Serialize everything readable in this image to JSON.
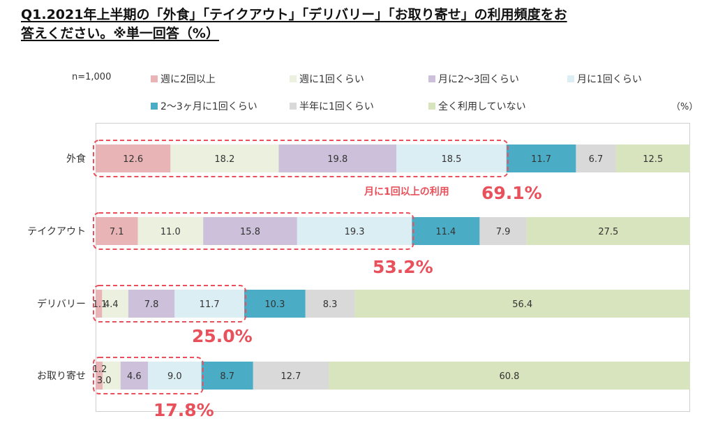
{
  "title_line1": "Q1.2021年上半期の「外食」「テイクアウト」「デリバリー」「お取り寄せ」の利用頻度をお",
  "title_line2": "答えください。※単一回答（%）",
  "n_label": "n=1,000",
  "unit_label": "（%）",
  "colors": {
    "weekly2plus": "#e8b4b5",
    "weekly1": "#ebf1de",
    "monthly2_3": "#ccc0da",
    "monthly1": "#dbeef4",
    "every2_3months": "#4bacc6",
    "halfyear1": "#d9d9d9",
    "never": "#d7e4bd",
    "annotation": "#e8505b"
  },
  "chart_data": {
    "type": "bar",
    "orientation": "horizontal",
    "stacked": true,
    "xlim": [
      0,
      100
    ],
    "categories": [
      "外食",
      "テイクアウト",
      "デリバリー",
      "お取り寄せ"
    ],
    "series": [
      {
        "name": "週に2回以上",
        "color": "#e8b4b5",
        "values": [
          12.6,
          7.1,
          1.1,
          1.2
        ]
      },
      {
        "name": "週に1回くらい",
        "color": "#ebf1de",
        "values": [
          18.2,
          11.0,
          4.4,
          3.0
        ]
      },
      {
        "name": "月に2～3回くらい",
        "color": "#ccc0da",
        "values": [
          19.8,
          15.8,
          7.8,
          4.6
        ]
      },
      {
        "name": "月に1回くらい",
        "color": "#dbeef4",
        "values": [
          18.5,
          19.3,
          11.7,
          9.0
        ]
      },
      {
        "name": "2～3ヶ月に1回くらい",
        "color": "#4bacc6",
        "values": [
          11.7,
          11.4,
          10.3,
          8.7
        ]
      },
      {
        "name": "半年に1回くらい",
        "color": "#d9d9d9",
        "values": [
          6.7,
          7.9,
          8.3,
          12.7
        ]
      },
      {
        "name": "全く利用していない",
        "color": "#d7e4bd",
        "values": [
          12.5,
          27.5,
          56.4,
          60.8
        ]
      }
    ],
    "value_labels": [
      [
        "12.6",
        "18.2",
        "19.8",
        "18.5",
        "11.7",
        "6.7",
        "12.5"
      ],
      [
        "7.1",
        "11.0",
        "15.8",
        "19.3",
        "11.4",
        "7.9",
        "27.5"
      ],
      [
        "1.1",
        "4.4",
        "7.8",
        "11.7",
        "10.3",
        "8.3",
        "56.4"
      ],
      [
        "1.2",
        "3.0",
        "4.6",
        "9.0",
        "8.7",
        "12.7",
        "60.8"
      ]
    ],
    "annotations": {
      "monthly_or_more_label": "月に1回以上の利用",
      "totals": [
        "69.1%",
        "53.2%",
        "25.0%",
        "17.8%"
      ]
    }
  }
}
